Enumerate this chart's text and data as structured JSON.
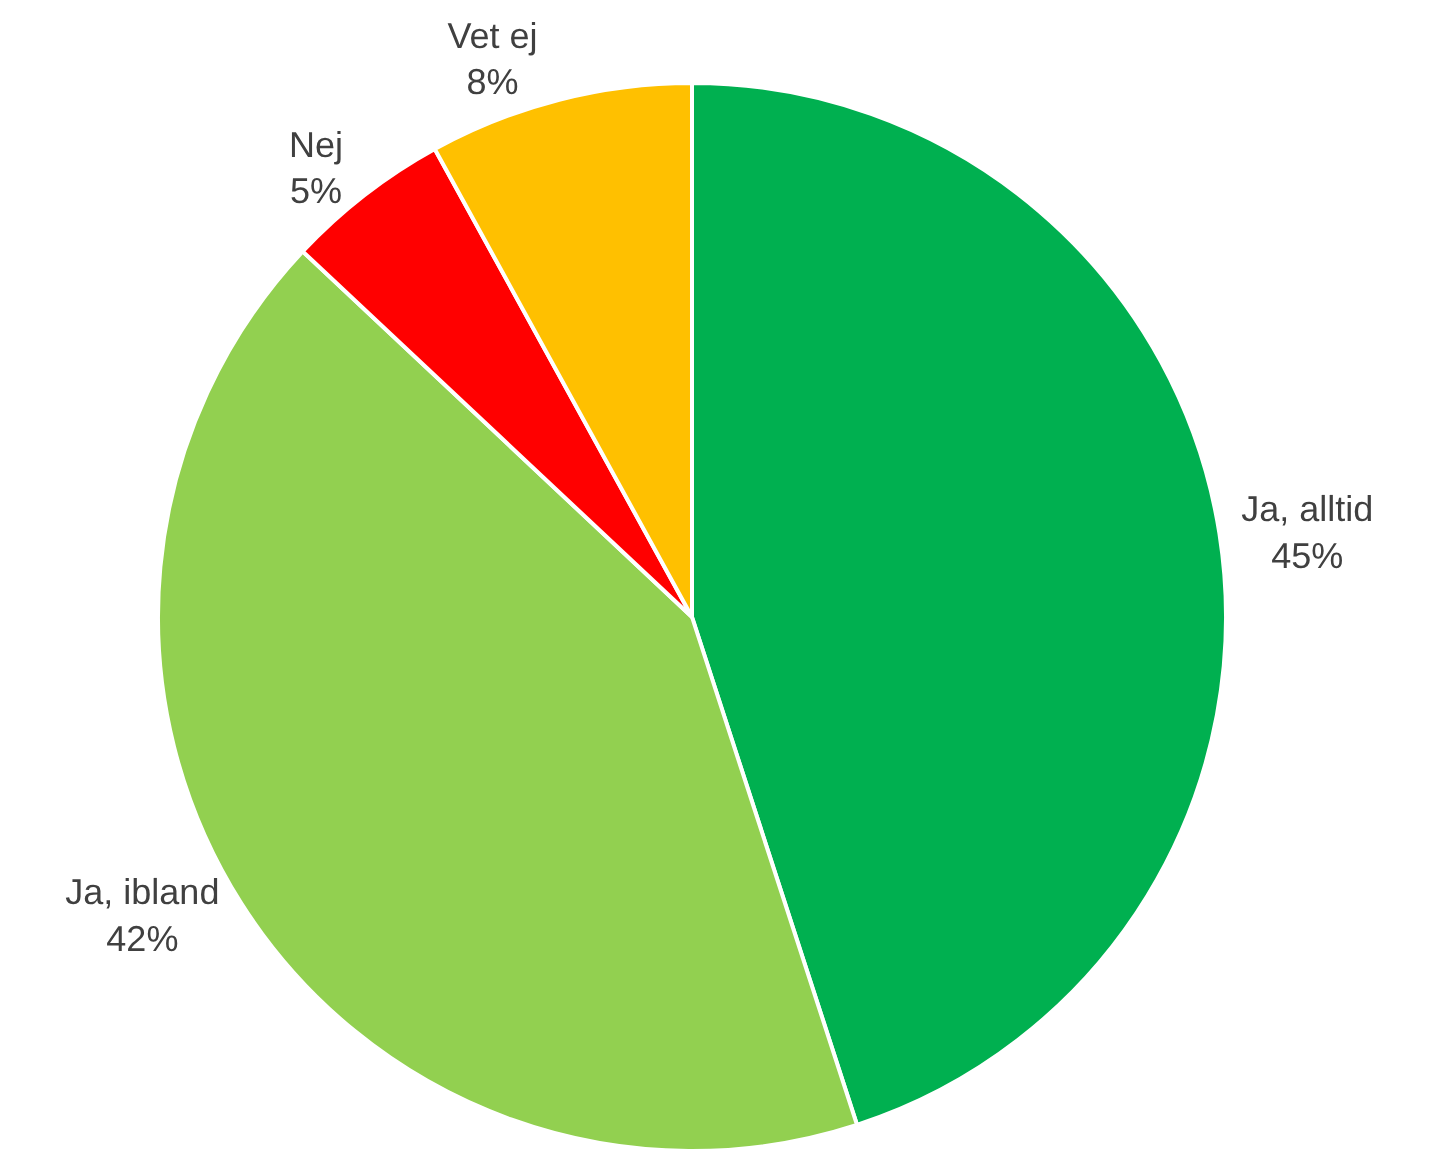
{
  "chart_data": {
    "type": "pie",
    "categories": [
      "Ja, alltid",
      "Ja, ibland",
      "Nej",
      "Vet ej"
    ],
    "values": [
      45,
      42,
      5,
      8
    ],
    "value_labels": [
      "45%",
      "42%",
      "5%",
      "8%"
    ],
    "colors": [
      "#00b050",
      "#92d050",
      "#ff0000",
      "#ffc000"
    ],
    "legend": false
  }
}
